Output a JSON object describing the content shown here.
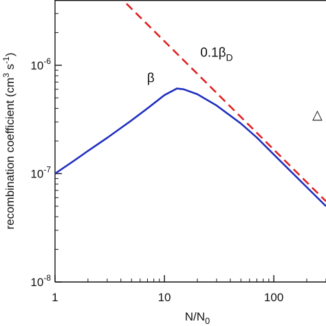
{
  "chart_data": {
    "type": "line",
    "xscale": "log",
    "yscale": "log",
    "xlim": [
      1,
      300
    ],
    "ylim": [
      1e-08,
      4e-06
    ],
    "x_ticks": [
      {
        "value": 1,
        "label": "1"
      },
      {
        "value": 10,
        "label": "10"
      },
      {
        "value": 100,
        "label": "100"
      }
    ],
    "y_ticks": [
      {
        "value": 1e-08,
        "base": "10",
        "exp": "-8"
      },
      {
        "value": 1e-07,
        "base": "10",
        "exp": "-7"
      },
      {
        "value": 1e-06,
        "base": "10",
        "exp": "-6"
      }
    ],
    "xlabel": {
      "main": "N/N",
      "sub": "0"
    },
    "ylabel": {
      "text": "recombination coefficient (cm",
      "exp1": "3",
      "mid": " s",
      "exp2": "-1",
      "end": ")"
    },
    "series": [
      {
        "name": "β",
        "color": "#1f2fbf",
        "style": "solid",
        "x": [
          1,
          1.5,
          2,
          3,
          5,
          7,
          10,
          13,
          15,
          20,
          30,
          50,
          70,
          100,
          150,
          200,
          300
        ],
        "y": [
          1e-07,
          1.32e-07,
          1.62e-07,
          2.14e-07,
          3.1e-07,
          4e-07,
          5.3e-07,
          6.1e-07,
          6e-07,
          5.4e-07,
          4.25e-07,
          2.9e-07,
          2.15e-07,
          1.5e-07,
          1e-07,
          7.5e-08,
          5e-08
        ]
      },
      {
        "name": "0.1β",
        "sub": "D",
        "color": "#e02020",
        "style": "dashed",
        "x": [
          4.5,
          10,
          20,
          50,
          100,
          300
        ],
        "y": [
          3.7e-06,
          1.665e-06,
          8.33e-07,
          3.33e-07,
          1.665e-07,
          5.55e-08
        ]
      }
    ],
    "annotations": [
      {
        "text": "β",
        "x": 7.5,
        "y": 7e-07
      },
      {
        "text": "0.1β",
        "sub": "D",
        "x": 30,
        "y": 1.2e-06
      },
      {
        "text": "△",
        "x": 250,
        "y": 3.2e-07
      }
    ],
    "grid": false,
    "legend": "none"
  }
}
